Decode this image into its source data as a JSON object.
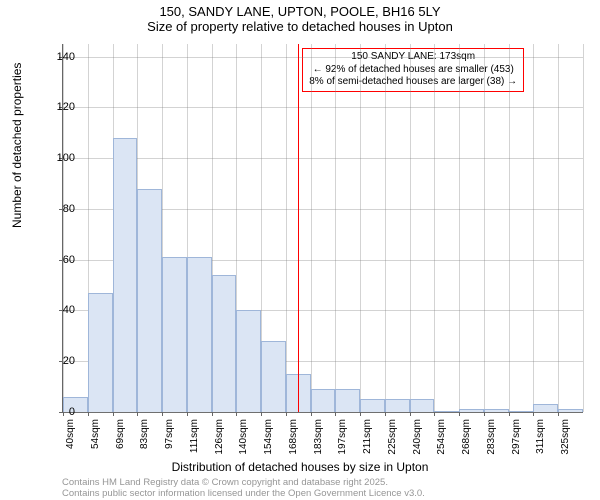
{
  "titles": {
    "main": "150, SANDY LANE, UPTON, POOLE, BH16 5LY",
    "sub": "Size of property relative to detached houses in Upton"
  },
  "axes": {
    "ylabel": "Number of detached properties",
    "xlabel": "Distribution of detached houses by size in Upton",
    "ylim": [
      0,
      145
    ],
    "yticks": [
      0,
      20,
      40,
      60,
      80,
      100,
      120,
      140
    ],
    "xtick_labels": [
      "40sqm",
      "54sqm",
      "69sqm",
      "83sqm",
      "97sqm",
      "111sqm",
      "126sqm",
      "140sqm",
      "154sqm",
      "168sqm",
      "183sqm",
      "197sqm",
      "211sqm",
      "225sqm",
      "240sqm",
      "254sqm",
      "268sqm",
      "283sqm",
      "297sqm",
      "311sqm",
      "325sqm"
    ]
  },
  "chart": {
    "type": "histogram",
    "bar_fill": "#dbe5f4",
    "bar_stroke": "#9fb6d9",
    "plot_bg": "#ffffff",
    "grid_color": "#808080",
    "values": [
      6,
      47,
      108,
      88,
      61,
      61,
      54,
      40,
      28,
      15,
      9,
      9,
      5,
      5,
      5,
      0,
      1,
      1,
      0,
      3,
      1
    ],
    "bar_count": 21
  },
  "marker": {
    "color": "#ff0000",
    "bar_index": 9.5,
    "box": {
      "line1": "150 SANDY LANE: 173sqm",
      "line2": "← 92% of detached houses are smaller (453)",
      "line3": "8% of semi-detached houses are larger (38) →"
    }
  },
  "footnotes": {
    "line1": "Contains HM Land Registry data © Crown copyright and database right 2025.",
    "line2": "Contains public sector information licensed under the Open Government Licence v3.0."
  }
}
